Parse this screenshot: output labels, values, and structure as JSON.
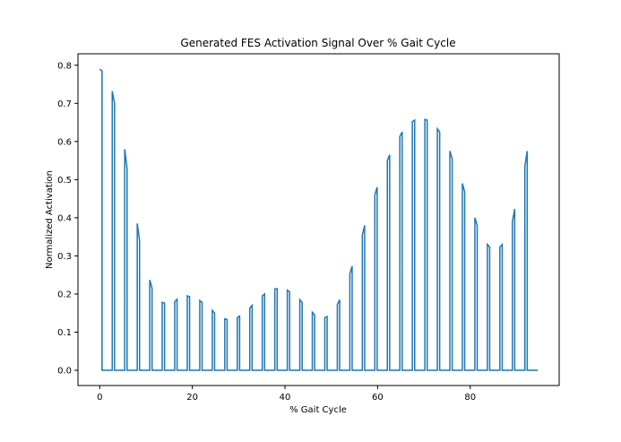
{
  "chart_data": {
    "type": "line",
    "title": "Generated FES Activation Signal Over % Gait Cycle",
    "xlabel": "% Gait Cycle",
    "ylabel": "Normalized Activation",
    "xlim": [
      -4.7,
      99.2
    ],
    "ylim": [
      -0.04,
      0.83
    ],
    "xticks": [
      0,
      20,
      40,
      60,
      80
    ],
    "yticks": [
      0.0,
      0.1,
      0.2,
      0.3,
      0.4,
      0.5,
      0.6,
      0.7,
      0.8
    ],
    "ytick_labels": [
      "0.0",
      "0.1",
      "0.2",
      "0.3",
      "0.4",
      "0.5",
      "0.6",
      "0.7",
      "0.8"
    ],
    "grid": false,
    "line_color": "#1f77b4",
    "pulse_width": 0.5,
    "x_end": 94.6,
    "series": [
      {
        "pulses": [
          {
            "x": 0.0,
            "y0": 0.79,
            "y1": 0.785
          },
          {
            "x": 2.7,
            "y0": 0.732,
            "y1": 0.7
          },
          {
            "x": 5.4,
            "y0": 0.58,
            "y1": 0.53
          },
          {
            "x": 8.1,
            "y0": 0.385,
            "y1": 0.34
          },
          {
            "x": 10.8,
            "y0": 0.237,
            "y1": 0.215
          },
          {
            "x": 13.5,
            "y0": 0.178,
            "y1": 0.176
          },
          {
            "x": 16.2,
            "y0": 0.18,
            "y1": 0.186
          },
          {
            "x": 18.9,
            "y0": 0.195,
            "y1": 0.193
          },
          {
            "x": 21.6,
            "y0": 0.183,
            "y1": 0.178
          },
          {
            "x": 24.3,
            "y0": 0.157,
            "y1": 0.15
          },
          {
            "x": 27.0,
            "y0": 0.135,
            "y1": 0.133
          },
          {
            "x": 29.7,
            "y0": 0.138,
            "y1": 0.142
          },
          {
            "x": 32.4,
            "y0": 0.163,
            "y1": 0.17
          },
          {
            "x": 35.1,
            "y0": 0.195,
            "y1": 0.2
          },
          {
            "x": 37.8,
            "y0": 0.213,
            "y1": 0.214
          },
          {
            "x": 40.5,
            "y0": 0.21,
            "y1": 0.206
          },
          {
            "x": 43.2,
            "y0": 0.185,
            "y1": 0.178
          },
          {
            "x": 45.9,
            "y0": 0.152,
            "y1": 0.145
          },
          {
            "x": 48.6,
            "y0": 0.138,
            "y1": 0.141
          },
          {
            "x": 51.3,
            "y0": 0.172,
            "y1": 0.185
          },
          {
            "x": 54.0,
            "y0": 0.253,
            "y1": 0.273
          },
          {
            "x": 56.7,
            "y0": 0.355,
            "y1": 0.38
          },
          {
            "x": 59.4,
            "y0": 0.46,
            "y1": 0.48
          },
          {
            "x": 62.1,
            "y0": 0.55,
            "y1": 0.565
          },
          {
            "x": 64.8,
            "y0": 0.613,
            "y1": 0.625
          },
          {
            "x": 67.5,
            "y0": 0.652,
            "y1": 0.656
          },
          {
            "x": 70.2,
            "y0": 0.658,
            "y1": 0.656
          },
          {
            "x": 72.9,
            "y0": 0.633,
            "y1": 0.625
          },
          {
            "x": 75.6,
            "y0": 0.575,
            "y1": 0.555
          },
          {
            "x": 78.3,
            "y0": 0.49,
            "y1": 0.468
          },
          {
            "x": 81.0,
            "y0": 0.4,
            "y1": 0.38
          },
          {
            "x": 83.7,
            "y0": 0.33,
            "y1": 0.323
          },
          {
            "x": 86.4,
            "y0": 0.323,
            "y1": 0.33
          },
          {
            "x": 89.1,
            "y0": 0.39,
            "y1": 0.423
          },
          {
            "x": 91.8,
            "y0": 0.535,
            "y1": 0.575
          }
        ]
      }
    ]
  }
}
